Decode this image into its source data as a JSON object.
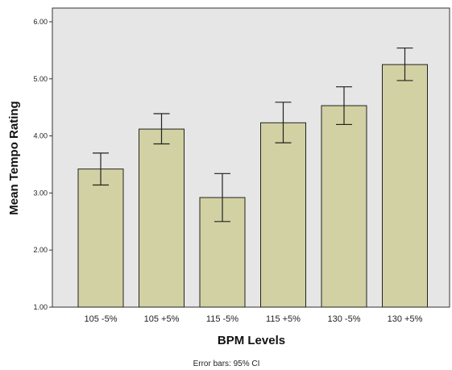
{
  "chart_data": {
    "type": "bar",
    "categories": [
      "105 -5%",
      "105 +5%",
      "115 -5%",
      "115 +5%",
      "130 -5%",
      "130 +5%"
    ],
    "values": [
      3.42,
      4.12,
      2.92,
      4.23,
      4.53,
      5.25
    ],
    "error_bars": {
      "lower": [
        3.14,
        3.86,
        2.5,
        3.88,
        4.2,
        4.97
      ],
      "upper": [
        3.7,
        4.39,
        3.34,
        4.59,
        4.86,
        5.54
      ]
    },
    "xlabel": "BPM Levels",
    "ylabel": "Mean Tempo Rating",
    "ylim": [
      1.0,
      6.0
    ],
    "yticks": [
      "1.00",
      "2.00",
      "3.00",
      "4.00",
      "5.00",
      "6.00"
    ],
    "footnote": "Error bars: 95% CI",
    "grid": false,
    "colors": {
      "bar": "#d1d1a3",
      "plot_background": "#e6e6e6"
    }
  }
}
